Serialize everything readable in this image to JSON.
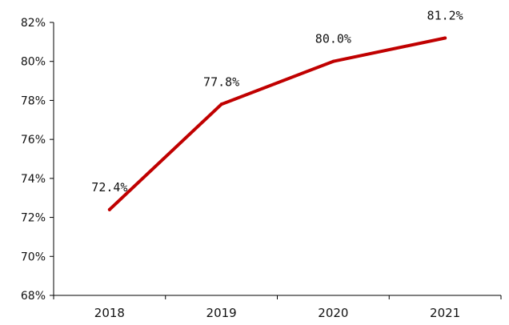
{
  "chart_data": {
    "type": "line",
    "categories": [
      "2018",
      "2019",
      "2020",
      "2021"
    ],
    "series": [
      {
        "values": [
          72.4,
          77.8,
          80.0,
          81.2
        ],
        "data_labels": [
          "72.4%",
          "77.8%",
          "80.0%",
          "81.2%"
        ],
        "color": "#c00000"
      }
    ],
    "ylim": [
      68,
      82
    ],
    "yticks": [
      68,
      70,
      72,
      74,
      76,
      78,
      80,
      82
    ],
    "ytick_labels": [
      "68%",
      "70%",
      "72%",
      "74%",
      "76%",
      "78%",
      "80%",
      "82%"
    ],
    "grid": false,
    "legend": "none",
    "axis_color": "#000000"
  }
}
